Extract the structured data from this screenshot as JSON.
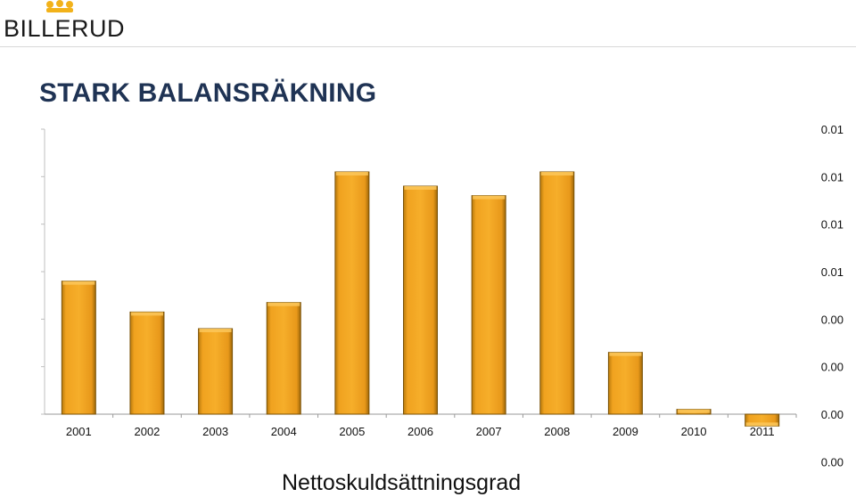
{
  "brand": {
    "name": "BILLERUD",
    "logo_icon": "crown-icon"
  },
  "title": "STARK BALANSRÄKNING",
  "chart_data": {
    "type": "bar",
    "title": "STARK BALANSRÄKNING",
    "xlabel": "Nettoskuldsättningsgrad",
    "ylabel": "",
    "categories": [
      "2001",
      "2002",
      "2003",
      "2004",
      "2005",
      "2006",
      "2007",
      "2008",
      "2009",
      "2010",
      "2011"
    ],
    "values": [
      0.0056,
      0.0043,
      0.0036,
      0.0047,
      0.0102,
      0.0096,
      0.0092,
      0.0102,
      0.0026,
      0.0002,
      -0.0005
    ],
    "ylim": [
      -0.002,
      0.012
    ],
    "y_ticks": [
      0.012,
      0.01,
      0.008,
      0.006,
      0.004,
      0.002,
      0.0,
      -0.002
    ],
    "y_tick_labels": [
      "0.01",
      "0.01",
      "0.01",
      "0.01",
      "0.00",
      "0.00",
      "0.00",
      "0.00"
    ],
    "y_axis_side": "right",
    "grid": false,
    "bar_color": "#f0a21f",
    "bar_edge_color": "#7a5208"
  }
}
